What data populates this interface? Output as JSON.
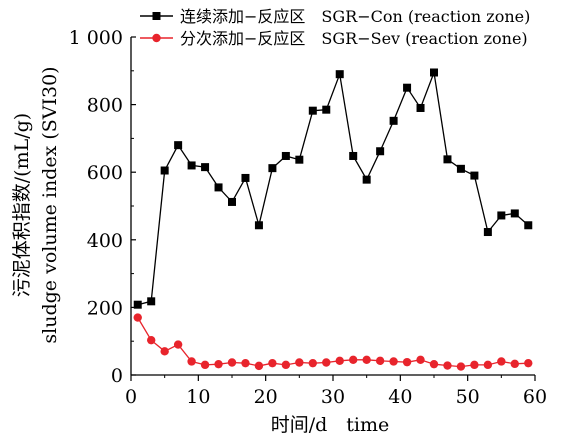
{
  "chart_data": {
    "type": "line",
    "title": "",
    "xlabel": "时间/d　time",
    "ylabel": [
      "污泥体积指数/(mL/g)",
      "sludge volume index (SVI30)"
    ],
    "xlim": [
      0,
      60
    ],
    "ylim": [
      0,
      1000
    ],
    "xticks": [
      0,
      10,
      20,
      30,
      40,
      50,
      60
    ],
    "yticks": [
      0,
      200,
      400,
      600,
      800,
      1000
    ],
    "xtick_labels": [
      "0",
      "10",
      "20",
      "30",
      "40",
      "50",
      "60"
    ],
    "ytick_labels": [
      "0",
      "200",
      "400",
      "600",
      "800",
      "1 000"
    ],
    "grid": false,
    "legend_position": "top-right",
    "series": [
      {
        "name": "连续添加−反应区　SGR−Con (reaction zone)",
        "color": "#000000",
        "marker": "square",
        "x": [
          1,
          3,
          5,
          7,
          9,
          11,
          13,
          15,
          17,
          19,
          21,
          23,
          25,
          27,
          29,
          31,
          33,
          35,
          37,
          39,
          41,
          43,
          45,
          47,
          49,
          51,
          53,
          55,
          57,
          59
        ],
        "y": [
          208,
          218,
          605,
          680,
          620,
          615,
          555,
          512,
          583,
          443,
          612,
          648,
          637,
          782,
          785,
          890,
          648,
          578,
          662,
          752,
          850,
          790,
          895,
          638,
          610,
          590,
          423,
          472,
          478,
          443
        ]
      },
      {
        "name": "分次添加−反应区　SGR−Sev (reaction zone)",
        "color": "#e8242c",
        "marker": "circle",
        "x": [
          1,
          3,
          5,
          7,
          9,
          11,
          13,
          15,
          17,
          19,
          21,
          23,
          25,
          27,
          29,
          31,
          33,
          35,
          37,
          39,
          41,
          43,
          45,
          47,
          49,
          51,
          53,
          55,
          57,
          59
        ],
        "y": [
          170,
          103,
          70,
          90,
          40,
          30,
          32,
          37,
          35,
          27,
          35,
          30,
          37,
          35,
          37,
          42,
          45,
          45,
          42,
          40,
          38,
          45,
          32,
          28,
          25,
          30,
          30,
          40,
          33,
          35
        ]
      }
    ]
  }
}
